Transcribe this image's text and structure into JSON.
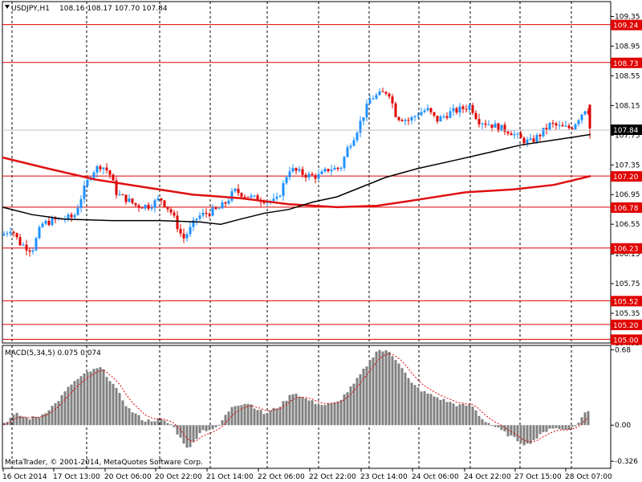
{
  "header": {
    "symbol_label": "USDJPY,H1",
    "ohlc": "108.16 108.17 107.70 107.84"
  },
  "macd_header": "MACD(5,34,5) 0.075 0.074",
  "copyright": "MetaTrader, © 2001-2014, MetaQuotes Software Corp.",
  "colors": {
    "background": "#ffffff",
    "bull": "#1e90ff",
    "bear": "#e00000",
    "level": "#e00000",
    "ma_slow": "#e01010",
    "ma_fast": "#000000",
    "macd_hist": "#808080",
    "macd_signal": "#e00000",
    "grid": "#000000",
    "price_box": "#000000"
  },
  "chart_data": {
    "type": "candlestick",
    "symbol": "USDJPY",
    "timeframe": "H1",
    "price_axis": {
      "ticks": [
        109.35,
        108.95,
        108.55,
        108.15,
        107.75,
        107.35,
        106.95,
        106.55,
        106.15,
        105.75,
        105.35,
        104.95
      ],
      "ylim": [
        104.95,
        109.55
      ]
    },
    "time_axis": {
      "labels": [
        "16 Oct 2014",
        "17 Oct 13:00",
        "20 Oct 06:00",
        "20 Oct 22:00",
        "21 Oct 14:00",
        "22 Oct 06:00",
        "22 Oct 22:00",
        "23 Oct 14:00",
        "24 Oct 06:00",
        "24 Oct 22:00",
        "27 Oct 15:00",
        "28 Oct 07:00"
      ]
    },
    "current_price": "107.84",
    "levels": [
      "109.24",
      "108.73",
      "107.20",
      "106.78",
      "106.23",
      "105.52",
      "105.20",
      "105.00"
    ],
    "macd": {
      "params": "MACD(5,34,5)",
      "ticks": [
        "0.68",
        "0.00",
        "-0.326"
      ],
      "ylim": [
        -0.39,
        0.72
      ]
    }
  }
}
